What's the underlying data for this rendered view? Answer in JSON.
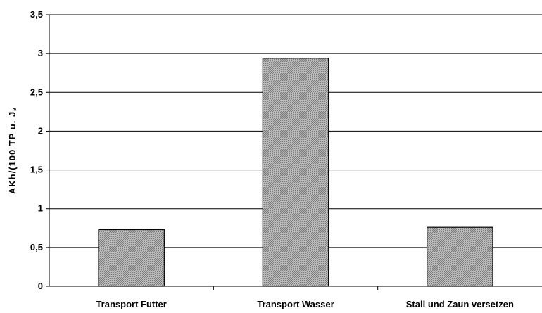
{
  "chart_data": {
    "type": "bar",
    "title": "",
    "xlabel": "",
    "ylabel": "AKh/(100 TP u. Jₐ",
    "categories": [
      "Transport Futter",
      "Transport Wasser",
      "Stall und Zaun versetzen"
    ],
    "values": [
      0.73,
      2.94,
      0.76
    ],
    "ylim": [
      0,
      3.5
    ],
    "yticks": [
      "0",
      "0,5",
      "1",
      "1,5",
      "2",
      "2,5",
      "3",
      "3,5"
    ],
    "grid": true,
    "bar_fill": "#a9a9a9",
    "bar_pattern": "crosshatch"
  }
}
